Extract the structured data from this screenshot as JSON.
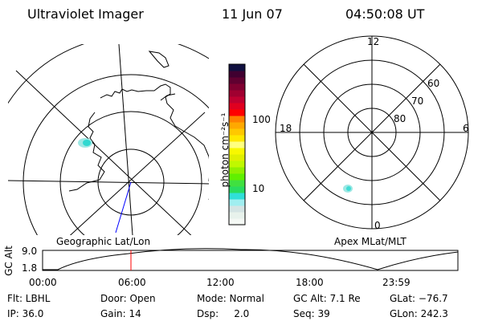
{
  "header": {
    "title": "Ultraviolet Imager",
    "date": "11 Jun 07",
    "time": "04:50:08 UT"
  },
  "colorbar": {
    "label": "photon cm⁻²s⁻¹",
    "ticks": [
      "100",
      "10"
    ],
    "colors": [
      "#f4f8f4",
      "#e8f2ec",
      "#d4e4e4",
      "#a0eef0",
      "#30e0d8",
      "#28dc60",
      "#40e040",
      "#60f000",
      "#90f000",
      "#c0f800",
      "#e0f000",
      "#f8f800",
      "#ffff80",
      "#ffe800",
      "#ffc800",
      "#ffa800",
      "#ff8000",
      "#ff0000",
      "#e00020",
      "#c00030",
      "#a00030",
      "#800030",
      "#600030",
      "#400030",
      "#101040"
    ]
  },
  "left_map": {
    "caption": "Geographic Lat/Lon"
  },
  "right_map": {
    "caption": "Apex MLat/MLT",
    "mlt_labels": [
      "12",
      "6",
      "0",
      "18"
    ],
    "lat_labels": [
      "60",
      "70",
      "80"
    ]
  },
  "timeline": {
    "ylabel": "GC Alt",
    "yticks": [
      "9.0",
      "1.8"
    ],
    "xticks": [
      "00:00",
      "06:00",
      "12:00",
      "18:00",
      "23:59"
    ],
    "current_marker_color": "#ff0000"
  },
  "status": {
    "flt": "Flt: LBHL",
    "ip": "IP: 36.0",
    "door": "Door: Open",
    "gain": "Gain: 14",
    "mode": "Mode: Normal",
    "dsp": "Dsp:     2.0",
    "gc_alt": "GC Alt: 7.1 Re",
    "seq": "Seq: 39",
    "glat": "GLat: −76.7",
    "glon": "GLon: 242.3"
  }
}
